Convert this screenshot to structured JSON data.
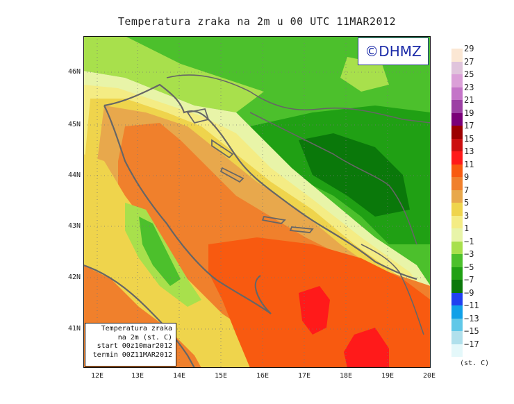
{
  "title": "Temperatura zraka na 2m u 00 UTC 11MAR2012",
  "badge": "©DHMZ",
  "info": {
    "line1": "Temperatura zraka",
    "line2": "na 2m (st. C)",
    "line3": "start 00z10mar2012",
    "line4": "termin 00Z11MAR2012"
  },
  "lat_labels": [
    "46N",
    "45N",
    "44N",
    "43N",
    "42N",
    "41N"
  ],
  "lon_labels": [
    "12E",
    "13E",
    "14E",
    "15E",
    "16E",
    "17E",
    "18E",
    "19E",
    "20E"
  ],
  "legend": {
    "labels": [
      "29",
      "27",
      "25",
      "23",
      "21",
      "19",
      "17",
      "15",
      "13",
      "11",
      "9",
      "7",
      "5",
      "3",
      "1",
      "−1",
      "−3",
      "−5",
      "−7",
      "−9",
      "−11",
      "−13",
      "−15",
      "−17"
    ],
    "colors": [
      "#fbe7d4",
      "#e0c4dc",
      "#dba0d8",
      "#c474c8",
      "#9c40a4",
      "#7a0078",
      "#9c0000",
      "#cc1010",
      "#ff1a1a",
      "#f85a10",
      "#f0802c",
      "#e8a84c",
      "#efd44c",
      "#f4ec84",
      "#e8f4a8",
      "#a8e04c",
      "#4cc02c",
      "#20a014",
      "#0a780a",
      "#2040f0",
      "#10a0e8",
      "#60c8e8",
      "#b0e0ec",
      "#e4f8fa"
    ],
    "units": "(st. C)"
  }
}
